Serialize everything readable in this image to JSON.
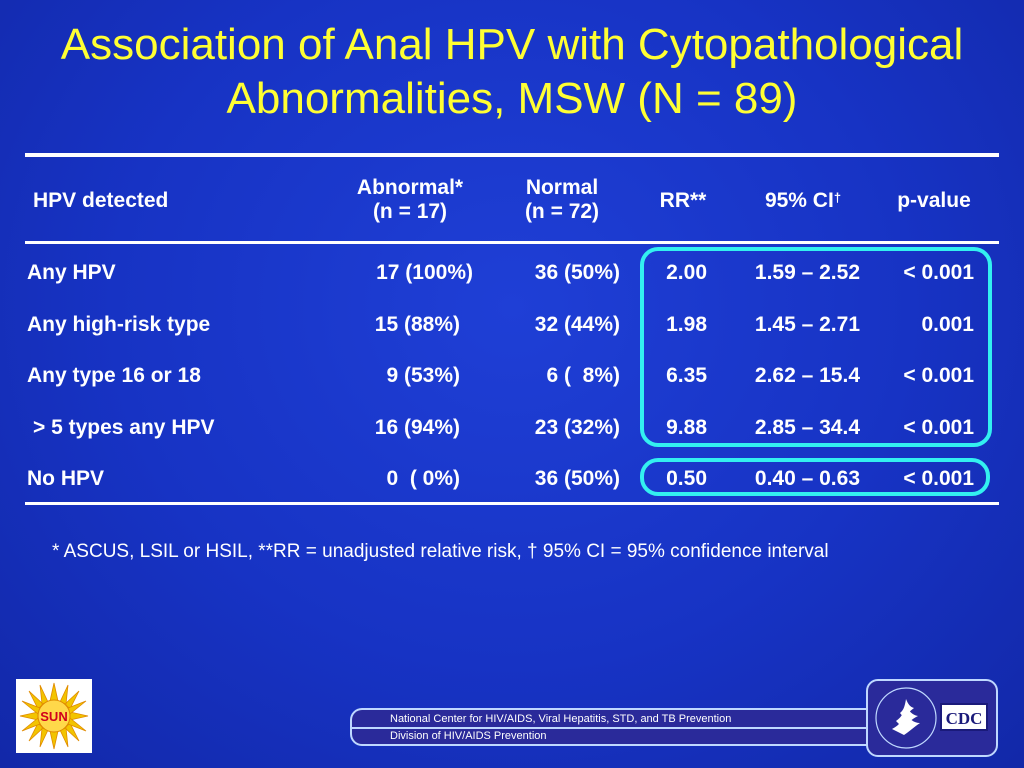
{
  "slide": {
    "title_line1": "Association of Anal HPV with Cytopathological",
    "title_line2": "Abnormalities, MSW (N = 89)"
  },
  "table": {
    "headers": {
      "hpv_detected": "HPV detected",
      "abnormal": "Abnormal*",
      "abnormal_n": "(n = 17)",
      "normal": "Normal",
      "normal_n": "(n = 72)",
      "rr": "RR**",
      "ci": "95% CI",
      "ci_sup": "†",
      "pvalue": "p-value"
    },
    "rows": [
      {
        "label": "Any HPV",
        "abnormal": "17 (100%)",
        "normal": "36 (50%)",
        "rr": "2.00",
        "ci": "1.59 – 2.52",
        "p": "< 0.001"
      },
      {
        "label": "Any high-risk type",
        "abnormal": "15 (88%)",
        "normal": "32 (44%)",
        "rr": "1.98",
        "ci": "1.45 – 2.71",
        "p": "0.001"
      },
      {
        "label": "Any type 16 or 18",
        "abnormal": "9 (53%)",
        "normal": "6 (  8%)",
        "rr": "6.35",
        "ci": "2.62 – 15.4",
        "p": "< 0.001"
      },
      {
        "label": "> 5 types any HPV",
        "abnormal": "16 (94%)",
        "normal": "23 (32%)",
        "rr": "9.88",
        "ci": "2.85 – 34.4",
        "p": "< 0.001"
      },
      {
        "label": "No HPV",
        "abnormal": "0  ( 0%)",
        "normal": "36 (50%)",
        "rr": "0.50",
        "ci": "0.40 – 0.63",
        "p": "< 0.001"
      }
    ]
  },
  "footnote": "*  ASCUS, LSIL or HSIL, **RR = unadjusted relative risk, † 95% CI = 95% confidence interval",
  "footer": {
    "center_line1": "National Center for HIV/AIDS, Viral Hepatitis, STD, and TB Prevention",
    "center_line2": "Division of HIV/AIDS Prevention",
    "logo_sun_text": "SUN",
    "logo_cdc_text": "CDC"
  },
  "colors": {
    "background": "#1733c4",
    "title": "#ffff33",
    "highlight": "#33f0f0"
  }
}
